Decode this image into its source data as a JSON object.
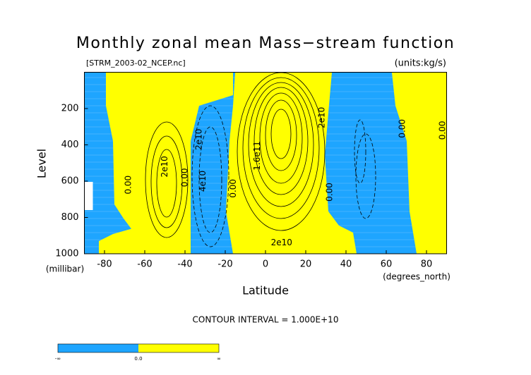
{
  "chart_data": {
    "type": "contour",
    "title": "Monthly zonal mean Mass−stream function",
    "source": "[STRM_2003-02_NCEP.nc]",
    "units": "(units:kg/s)",
    "xlabel": "Latitude",
    "ylabel": "Level",
    "xunits": "(degrees_north)",
    "yunits": "(millibar)",
    "xlim": [
      -90,
      90
    ],
    "ylim": [
      1000,
      0
    ],
    "xticks": [
      -80,
      -60,
      -40,
      -20,
      0,
      20,
      40,
      60,
      80
    ],
    "yticks": [
      200,
      400,
      600,
      800,
      1000
    ],
    "contour_interval": "CONTOUR INTERVAL = 1.000E+10",
    "contour_labels": [
      {
        "text": "2e10",
        "x": -50,
        "y": 520
      },
      {
        "text": "0.00",
        "x": -68,
        "y": 620
      },
      {
        "text": "0.00",
        "x": -40,
        "y": 580
      },
      {
        "text": "4e10",
        "x": -31,
        "y": 600
      },
      {
        "text": "2e10",
        "x": -33,
        "y": 370
      },
      {
        "text": "0.00",
        "x": -16,
        "y": 640
      },
      {
        "text": "1.6e11",
        "x": -4,
        "y": 460
      },
      {
        "text": "2e10",
        "x": 8,
        "y": 940
      },
      {
        "text": "2e10",
        "x": 28,
        "y": 250
      },
      {
        "text": "0.00",
        "x": 32,
        "y": 660
      },
      {
        "text": "0.00",
        "x": 68,
        "y": 310
      },
      {
        "text": "0.00",
        "x": 88,
        "y": 320
      }
    ],
    "colorbar": {
      "labels": [
        "-∞",
        "0.0",
        "∞"
      ],
      "colors": [
        "#1ea5ff",
        "#ffff00"
      ]
    }
  }
}
